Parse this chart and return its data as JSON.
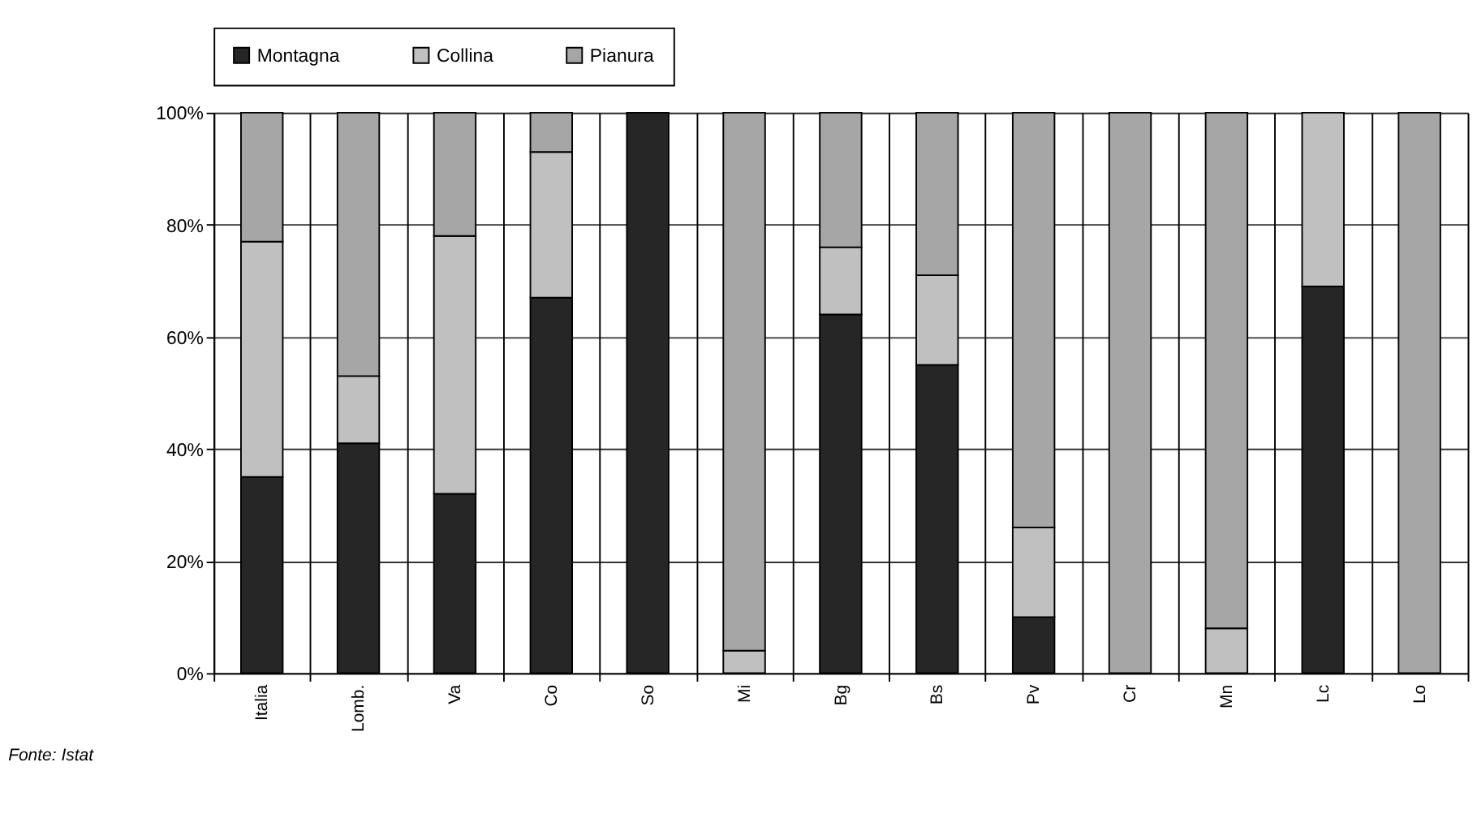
{
  "chart_data": {
    "type": "bar",
    "stacked": true,
    "categories": [
      "Italia",
      "Lomb.",
      "Va",
      "Co",
      "So",
      "Mi",
      "Bg",
      "Bs",
      "Pv",
      "Cr",
      "Mn",
      "Lc",
      "Lo"
    ],
    "series": [
      {
        "name": "Montagna",
        "color": "#262626",
        "values": [
          35,
          41,
          32,
          67,
          100,
          0,
          64,
          55,
          10,
          0,
          0,
          69,
          0
        ]
      },
      {
        "name": "Collina",
        "color": "#c0c0c0",
        "values": [
          42,
          12,
          46,
          26,
          0,
          4,
          12,
          16,
          16,
          0,
          8,
          31,
          0
        ]
      },
      {
        "name": "Pianura",
        "color": "#a6a6a6",
        "values": [
          23,
          47,
          22,
          7,
          0,
          96,
          24,
          29,
          74,
          100,
          92,
          0,
          100
        ]
      }
    ],
    "ylim": [
      0,
      100
    ],
    "yticks": [
      {
        "value": 0,
        "label": "0%"
      },
      {
        "value": 20,
        "label": "20%"
      },
      {
        "value": 40,
        "label": "40%"
      },
      {
        "value": 60,
        "label": "60%"
      },
      {
        "value": 80,
        "label": "80%"
      },
      {
        "value": 100,
        "label": "100%"
      }
    ],
    "grid": true,
    "legend": "top",
    "annotations": [
      "Fonte: Istat"
    ]
  }
}
